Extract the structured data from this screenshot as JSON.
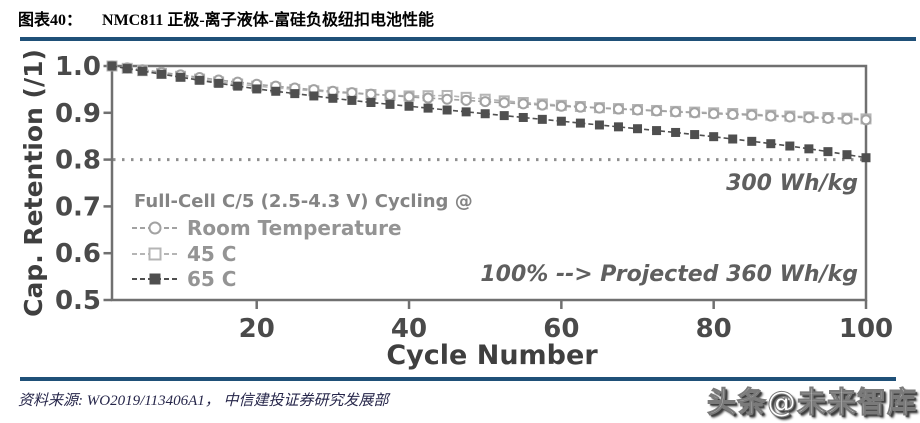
{
  "figure": {
    "label": "图表40：",
    "title": "NMC811 正极-离子液体-富硅负极纽扣电池性能"
  },
  "chart_data": {
    "type": "line",
    "title": "",
    "xlabel": "Cycle Number",
    "ylabel": "Cap. Retention (/1)",
    "xlim": [
      0,
      100
    ],
    "ylim": [
      0.5,
      1.0
    ],
    "x_ticks": [
      20,
      40,
      60,
      80,
      100
    ],
    "y_ticks": [
      "1.0",
      "0.9",
      "0.8",
      "0.7",
      "0.6",
      "0.5"
    ],
    "grid": false,
    "legend_title": "Full-Cell C/5 (2.5-4.3 V) Cycling @",
    "legend_position": "inside lower-left",
    "reference_line": {
      "y": 0.8,
      "style": "dotted"
    },
    "annotations": [
      "300 Wh/kg",
      "100% --> Projected 360 Wh/kg"
    ],
    "x": [
      1,
      5,
      10,
      15,
      20,
      25,
      30,
      35,
      40,
      45,
      50,
      55,
      60,
      65,
      70,
      75,
      80,
      85,
      90,
      95,
      100
    ],
    "series": [
      {
        "name": "Room Temperature",
        "marker": "open-circle",
        "color": "#a2a2a2",
        "values": [
          1.0,
          0.992,
          0.981,
          0.97,
          0.961,
          0.953,
          0.946,
          0.94,
          0.934,
          0.929,
          0.924,
          0.919,
          0.914,
          0.91,
          0.906,
          0.902,
          0.898,
          0.895,
          0.891,
          0.888,
          0.885
        ]
      },
      {
        "name": "45 C",
        "marker": "open-square",
        "color": "#b5b5b5",
        "values": [
          1.0,
          0.99,
          0.978,
          0.966,
          0.957,
          0.95,
          0.944,
          0.939,
          0.936,
          0.937,
          0.929,
          0.922,
          0.916,
          0.911,
          0.907,
          0.903,
          0.9,
          0.897,
          0.893,
          0.89,
          0.887
        ]
      },
      {
        "name": "65 C",
        "marker": "filled-square",
        "color": "#4f4f4f",
        "values": [
          1.0,
          0.989,
          0.976,
          0.963,
          0.951,
          0.941,
          0.931,
          0.922,
          0.914,
          0.906,
          0.898,
          0.89,
          0.882,
          0.874,
          0.866,
          0.858,
          0.849,
          0.839,
          0.829,
          0.817,
          0.804
        ]
      }
    ]
  },
  "source": {
    "text": "资料来源: WO2019/113406A1， 中信建投证券研究发展部"
  },
  "watermark": {
    "text": "头条@未来智库"
  },
  "colors": {
    "rule": "#1f5078",
    "axis_text": "#4a4a4a",
    "frame": "#707070",
    "legend_text": "#949494",
    "annotation_text": "#5f5f5f",
    "reference_line": "#8f8f8f"
  }
}
